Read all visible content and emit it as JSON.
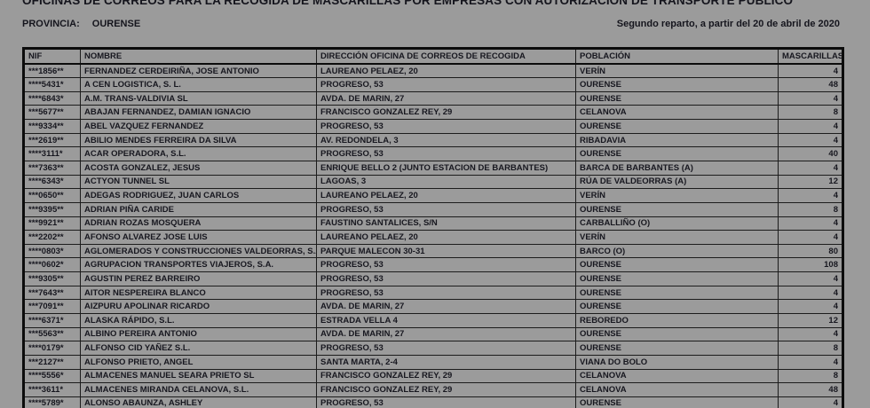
{
  "page": {
    "title": "OFICINAS DE CORREOS PARA LA RECOGIDA DE MASCARILLAS POR EMPRESAS CON AUTORIZACIÓN DE TRANSPORTE PÚBLICO",
    "province_label": "PROVINCIA:",
    "province_value": "OURENSE",
    "subtitle_right": "Segundo reparto, a partir del 20 de abril de 2020"
  },
  "colors": {
    "background": "#9b9b9b",
    "text": "#17171f",
    "border": "#0c0c0c"
  },
  "table": {
    "headers": [
      "NIF",
      "NOMBRE",
      "DIRECCIÓN OFICINA DE CORREOS DE RECOGIDA",
      "POBLACIÓN",
      "MASCARILLAS"
    ],
    "rows": [
      {
        "nif": "***1856**",
        "nombre": "FERNANDEZ CERDEIRIÑA, JOSE ANTONIO",
        "direccion": "LAUREANO PELAEZ, 20",
        "poblacion": "VERÍN",
        "mascarillas": 4
      },
      {
        "nif": "****5431*",
        "nombre": "A CEN LOGISTICA, S. L.",
        "direccion": "PROGRESO, 53",
        "poblacion": "OURENSE",
        "mascarillas": 48
      },
      {
        "nif": "****6843*",
        "nombre": "A.M. TRANS-VALDIVIA SL",
        "direccion": "AVDA. DE MARIN, 27",
        "poblacion": "OURENSE",
        "mascarillas": 4
      },
      {
        "nif": "***5677**",
        "nombre": "ABAJAN FERNANDEZ, DAMIAN IGNACIO",
        "direccion": "FRANCISCO GONZALEZ REY, 29",
        "poblacion": "CELANOVA",
        "mascarillas": 8
      },
      {
        "nif": "***9334**",
        "nombre": "ABEL VAZQUEZ FERNANDEZ",
        "direccion": "PROGRESO, 53",
        "poblacion": "OURENSE",
        "mascarillas": 4
      },
      {
        "nif": "***2619**",
        "nombre": "ABILIO MENDES FERREIRA DA SILVA",
        "direccion": "AV. REDONDELA, 3",
        "poblacion": "RIBADAVIA",
        "mascarillas": 4
      },
      {
        "nif": "****3111*",
        "nombre": "ACAR OPERADORA, S.L.",
        "direccion": "PROGRESO, 53",
        "poblacion": "OURENSE",
        "mascarillas": 40
      },
      {
        "nif": "***7363**",
        "nombre": "ACOSTA GONZALEZ, JESUS",
        "direccion": "ENRIQUE BELLO 2 (JUNTO ESTACION DE BARBANTES)",
        "poblacion": "BARCA DE BARBANTES (A)",
        "mascarillas": 4
      },
      {
        "nif": "****6343*",
        "nombre": "ACTYON TUNNEL SL",
        "direccion": "LAGOAS, 3",
        "poblacion": "RÚA DE VALDEORRAS (A)",
        "mascarillas": 12
      },
      {
        "nif": "***0650**",
        "nombre": "ADEGAS RODRIGUEZ, JUAN CARLOS",
        "direccion": "LAUREANO PELAEZ, 20",
        "poblacion": "VERÍN",
        "mascarillas": 4
      },
      {
        "nif": "***9395**",
        "nombre": "ADRIAN PIÑA CARIDE",
        "direccion": "PROGRESO, 53",
        "poblacion": "OURENSE",
        "mascarillas": 8
      },
      {
        "nif": "***9921**",
        "nombre": "ADRIAN ROZAS MOSQUERA",
        "direccion": "FAUSTINO SANTALICES, S/N",
        "poblacion": "CARBALLIÑO (O)",
        "mascarillas": 4
      },
      {
        "nif": "***2202**",
        "nombre": "AFONSO ALVAREZ JOSE LUIS",
        "direccion": "LAUREANO PELAEZ, 20",
        "poblacion": "VERÍN",
        "mascarillas": 4
      },
      {
        "nif": "****0803*",
        "nombre": "AGLOMERADOS Y CONSTRUCCIONES VALDEORRAS, S.A.",
        "direccion": "PARQUE MALECON 30-31",
        "poblacion": "BARCO (O)",
        "mascarillas": 80
      },
      {
        "nif": "****0602*",
        "nombre": "AGRUPACION TRANSPORTES VIAJEROS, S.A.",
        "direccion": "PROGRESO, 53",
        "poblacion": "OURENSE",
        "mascarillas": 108
      },
      {
        "nif": "***9305**",
        "nombre": "AGUSTIN PEREZ BARREIRO",
        "direccion": "PROGRESO, 53",
        "poblacion": "OURENSE",
        "mascarillas": 4
      },
      {
        "nif": "***7643**",
        "nombre": "AITOR NESPEREIRA BLANCO",
        "direccion": "PROGRESO, 53",
        "poblacion": "OURENSE",
        "mascarillas": 4
      },
      {
        "nif": "***7091**",
        "nombre": "AIZPURU APOLINAR RICARDO",
        "direccion": "AVDA. DE MARIN, 27",
        "poblacion": "OURENSE",
        "mascarillas": 4
      },
      {
        "nif": "****6371*",
        "nombre": "ALASKA RÁPIDO, S.L.",
        "direccion": "ESTRADA VELLA 4",
        "poblacion": "REBOREDO",
        "mascarillas": 12
      },
      {
        "nif": "***5563**",
        "nombre": "ALBINO PEREIRA ANTONIO",
        "direccion": "AVDA. DE MARIN, 27",
        "poblacion": "OURENSE",
        "mascarillas": 4
      },
      {
        "nif": "****0179*",
        "nombre": "ALFONSO CID YAÑEZ S.L.",
        "direccion": "PROGRESO, 53",
        "poblacion": "OURENSE",
        "mascarillas": 8
      },
      {
        "nif": "***2127**",
        "nombre": "ALFONSO PRIETO, ANGEL",
        "direccion": "SANTA MARTA, 2-4",
        "poblacion": "VIANA DO BOLO",
        "mascarillas": 4
      },
      {
        "nif": "****5556*",
        "nombre": "ALMACENES MANUEL SEARA PRIETO SL",
        "direccion": "FRANCISCO GONZALEZ REY, 29",
        "poblacion": "CELANOVA",
        "mascarillas": 8
      },
      {
        "nif": "****3611*",
        "nombre": "ALMACENES MIRANDA CELANOVA, S.L.",
        "direccion": "FRANCISCO GONZALEZ REY, 29",
        "poblacion": "CELANOVA",
        "mascarillas": 48
      },
      {
        "nif": "****5789*",
        "nombre": "ALONSO ABAUNZA, ASHLEY",
        "direccion": "PROGRESO, 53",
        "poblacion": "OURENSE",
        "mascarillas": 4
      }
    ]
  }
}
